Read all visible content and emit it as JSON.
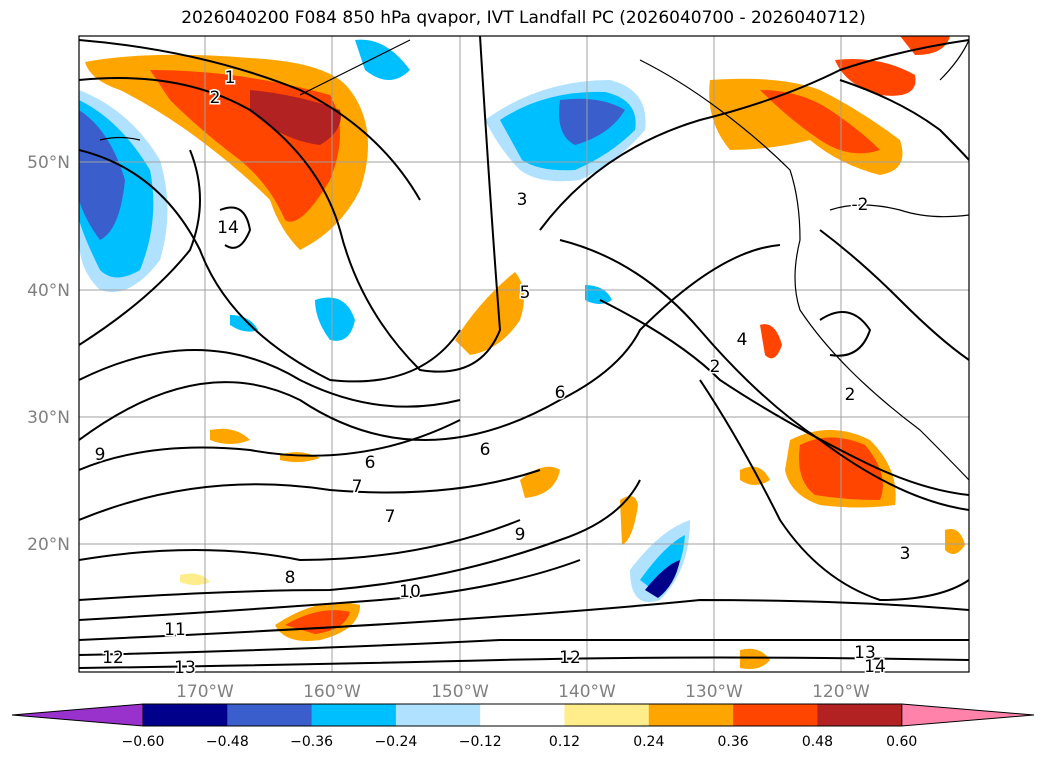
{
  "title": "2026040200 F084 850 hPa qvapor, IVT Landfall PC (2026040700 - 2026040712)",
  "map": {
    "lon_ticks": [
      "170°W",
      "160°W",
      "150°W",
      "140°W",
      "130°W",
      "120°W"
    ],
    "lat_ticks": [
      "50°N",
      "40°N",
      "30°N",
      "20°N"
    ],
    "contour_labels": [
      "1",
      "2",
      "3",
      "5",
      "6",
      "6",
      "6",
      "7",
      "7",
      "8",
      "9",
      "9",
      "10",
      "11",
      "12",
      "12",
      "13",
      "14",
      "2",
      "2",
      "4",
      "-2",
      "3",
      "13",
      "14"
    ],
    "coastline": "black",
    "grid": true
  },
  "colorbar": {
    "ticks": [
      "−0.60",
      "−0.48",
      "−0.36",
      "−0.24",
      "−0.12",
      "0.12",
      "0.24",
      "0.36",
      "0.48",
      "0.60"
    ],
    "colors": [
      "#9932cc",
      "#00008b",
      "#3a5fcd",
      "#00bfff",
      "#b0e2ff",
      "#ffffff",
      "#ffec8b",
      "#ffa500",
      "#ff4500",
      "#b22222",
      "#ff82ab"
    ],
    "extend": "both"
  }
}
